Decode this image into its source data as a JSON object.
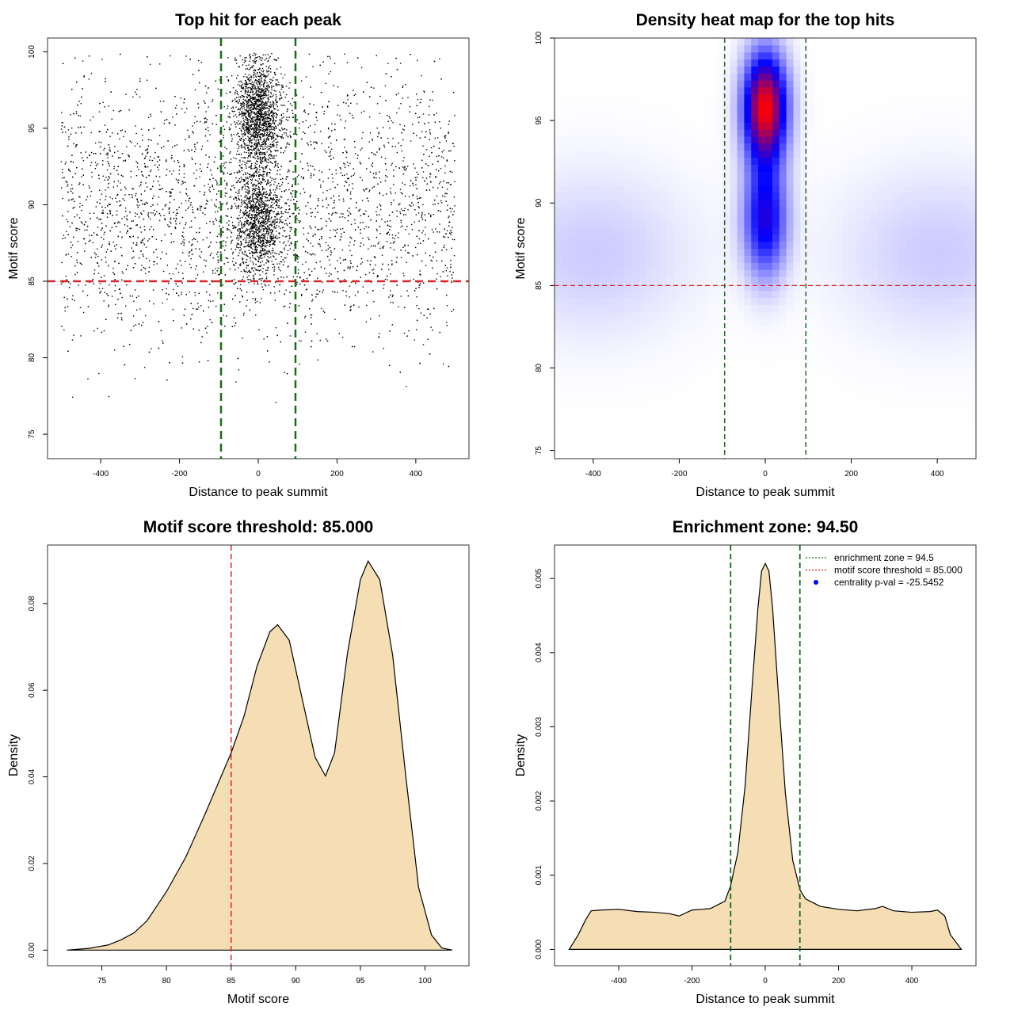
{
  "chart_data": [
    {
      "id": "scatter",
      "type": "scatter",
      "title": "Top hit for each peak",
      "xlabel": "Distance to peak summit",
      "ylabel": "Motif score",
      "xlim": [
        -535,
        535
      ],
      "ylim": [
        73.4,
        100.9
      ],
      "xticks": [
        -400,
        -200,
        0,
        200,
        400
      ],
      "yticks": [
        75,
        80,
        85,
        90,
        95,
        100
      ],
      "threshold": 85,
      "zone": [
        -94.5,
        94.5
      ],
      "threshold_color": "#e0252b",
      "zone_color": "#1a6b1a",
      "point_color": "#000000",
      "n_points": 6500,
      "distribution": {
        "background": {
          "x_range": [
            -500,
            500
          ],
          "score_modes": [
            {
              "mean": 88,
              "sd": 3.5,
              "weight": 0.7
            },
            {
              "mean": 94,
              "sd": 3,
              "weight": 0.3
            }
          ]
        },
        "central": {
          "x_sd": 30,
          "score_modes": [
            {
              "mean": 95.8,
              "sd": 1.8,
              "weight": 0.55
            },
            {
              "mean": 89,
              "sd": 1.8,
              "weight": 0.45
            }
          ]
        }
      }
    },
    {
      "id": "heatmap",
      "type": "heatmap",
      "title": "Density heat map for the top hits",
      "xlabel": "Distance to peak summit",
      "ylabel": "Motif score",
      "xlim": [
        -490,
        490
      ],
      "ylim": [
        74.5,
        100
      ],
      "xticks": [
        -400,
        -200,
        0,
        200,
        400
      ],
      "yticks": [
        75,
        80,
        85,
        90,
        95,
        100
      ],
      "threshold": 85,
      "zone": [
        -94.5,
        94.5
      ],
      "colors": [
        "#ffffff",
        "#0000ff",
        "#ff0000"
      ],
      "density_peaks": [
        {
          "x": 0,
          "y": 95.8,
          "sx": 35,
          "sy": 2.3,
          "w": 1.0
        },
        {
          "x": 0,
          "y": 89,
          "sx": 35,
          "sy": 2.4,
          "w": 0.55
        },
        {
          "x": -400,
          "y": 87,
          "sx": 160,
          "sy": 3.5,
          "w": 0.1
        },
        {
          "x": 400,
          "y": 87,
          "sx": 160,
          "sy": 3.5,
          "w": 0.1
        }
      ]
    },
    {
      "id": "score-density",
      "type": "area",
      "title": "Motif score threshold: 85.000",
      "xlabel": "Motif score",
      "ylabel": "Density",
      "xlim": [
        70.8,
        103.4
      ],
      "ylim": [
        -0.0036,
        0.0935
      ],
      "xticks": [
        75,
        80,
        85,
        90,
        95,
        100
      ],
      "yticks": [
        0.0,
        0.02,
        0.04,
        0.06,
        0.08
      ],
      "ytick_labels": [
        "0.00",
        "0.02",
        "0.04",
        "0.06",
        "0.08"
      ],
      "threshold": 85,
      "fill": "#f5deb3",
      "threshold_color": "#e0252b",
      "curve": {
        "x": [
          72.3,
          74,
          75.5,
          76.5,
          77.5,
          78.5,
          80,
          81.5,
          83,
          84,
          85,
          86,
          87,
          88,
          88.6,
          89.5,
          90.5,
          91.5,
          92.3,
          93,
          94,
          95,
          95.6,
          96.5,
          97.5,
          98.5,
          99.5,
          100.5,
          101.3,
          102.1
        ],
        "y": [
          0.0,
          0.0004,
          0.0012,
          0.0024,
          0.004,
          0.0068,
          0.0135,
          0.0215,
          0.0315,
          0.0385,
          0.0455,
          0.054,
          0.0655,
          0.0735,
          0.0751,
          0.0715,
          0.058,
          0.0445,
          0.0402,
          0.0455,
          0.0685,
          0.0855,
          0.0898,
          0.0855,
          0.068,
          0.0405,
          0.0145,
          0.0035,
          0.0005,
          0.0
        ]
      }
    },
    {
      "id": "distance-density",
      "type": "area",
      "title": "Enrichment zone: 94.50",
      "xlabel": "Distance to peak summit",
      "ylabel": "Density",
      "xlim": [
        -575,
        575
      ],
      "ylim": [
        -0.00022,
        0.00545
      ],
      "xticks": [
        -400,
        -200,
        0,
        200,
        400
      ],
      "yticks": [
        0.0,
        0.001,
        0.002,
        0.003,
        0.004,
        0.005
      ],
      "ytick_labels": [
        "0.000",
        "0.001",
        "0.002",
        "0.003",
        "0.004",
        "0.005"
      ],
      "zone": [
        -94.5,
        94.5
      ],
      "fill": "#f5deb3",
      "zone_color": "#1a6b1a",
      "curve": {
        "x": [
          -535,
          -510,
          -490,
          -475,
          -450,
          -400,
          -350,
          -300,
          -260,
          -235,
          -200,
          -150,
          -110,
          -95,
          -75,
          -55,
          -35,
          -20,
          -10,
          0,
          10,
          20,
          35,
          55,
          75,
          95,
          110,
          150,
          200,
          250,
          300,
          320,
          350,
          400,
          450,
          470,
          490,
          505,
          535
        ],
        "y": [
          0.0,
          0.0002,
          0.0004,
          0.00052,
          0.00053,
          0.00054,
          0.00051,
          0.0005,
          0.00048,
          0.00045,
          0.00053,
          0.00055,
          0.00065,
          0.00085,
          0.0013,
          0.0022,
          0.0036,
          0.0046,
          0.0051,
          0.0052,
          0.0051,
          0.0046,
          0.0035,
          0.0021,
          0.0012,
          0.0008,
          0.00068,
          0.00058,
          0.00054,
          0.00052,
          0.00055,
          0.00058,
          0.00052,
          0.0005,
          0.00051,
          0.00053,
          0.00045,
          0.0002,
          0.0
        ]
      },
      "legend": [
        {
          "label": "enrichment zone = 94.5",
          "kind": "dotted-line",
          "color": "#1a6b1a"
        },
        {
          "label": "motif score threshold = 85.000",
          "kind": "dotted-line",
          "color": "#e0252b"
        },
        {
          "label": "centrality p-val = -25.5452",
          "kind": "point",
          "color": "#0000ff"
        }
      ]
    }
  ]
}
